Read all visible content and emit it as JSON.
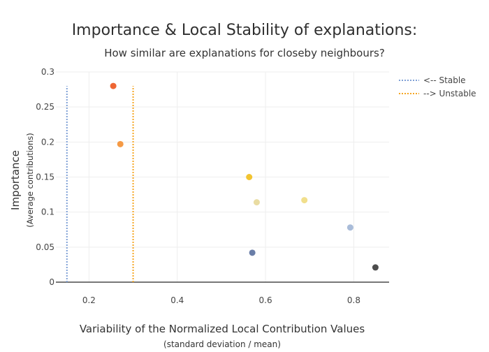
{
  "chart_data": {
    "type": "scatter",
    "title": "Importance & Local Stability of explanations:",
    "subtitle": "How similar are explanations for closeby neighbours?",
    "xlabel": "Variability of the Normalized Local Contribution Values",
    "xlabel_sub": "(standard deviation / mean)",
    "ylabel": "Importance",
    "ylabel_sub": "(Average contributions)",
    "xlim": [
      0.125,
      0.88
    ],
    "ylim": [
      0,
      0.3
    ],
    "x_ticks": [
      0.2,
      0.4,
      0.6,
      0.8
    ],
    "x_tick_labels": [
      "0.2",
      "0.4",
      "0.6",
      "0.8"
    ],
    "y_ticks": [
      0,
      0.05,
      0.1,
      0.15,
      0.2,
      0.25,
      0.3
    ],
    "y_tick_labels": [
      "0",
      "0.05",
      "0.1",
      "0.15",
      "0.2",
      "0.25",
      "0.3"
    ],
    "grid": true,
    "legend_position": "top-right",
    "points": [
      {
        "x": 0.255,
        "y": 0.28,
        "color": "#ee6633"
      },
      {
        "x": 0.271,
        "y": 0.197,
        "color": "#f59a45"
      },
      {
        "x": 0.563,
        "y": 0.15,
        "color": "#f2c431"
      },
      {
        "x": 0.58,
        "y": 0.114,
        "color": "#e9dca2"
      },
      {
        "x": 0.688,
        "y": 0.117,
        "color": "#f1df8c"
      },
      {
        "x": 0.792,
        "y": 0.078,
        "color": "#a9bcd9"
      },
      {
        "x": 0.57,
        "y": 0.042,
        "color": "#6a7ea8"
      },
      {
        "x": 0.849,
        "y": 0.021,
        "color": "#4d4d4d"
      }
    ],
    "vlines": [
      {
        "name": "<-- Stable",
        "x": 0.15,
        "y_range": [
          0,
          0.28
        ],
        "color": "#7fa0d6"
      },
      {
        "name": "--> Unstable",
        "x": 0.3,
        "y_range": [
          0,
          0.28
        ],
        "color": "#f5a623"
      }
    ],
    "colors": {
      "text": "#2a3f5f",
      "title": "#333333",
      "grid": "#eeeeee",
      "zeroline": "#777777"
    }
  }
}
